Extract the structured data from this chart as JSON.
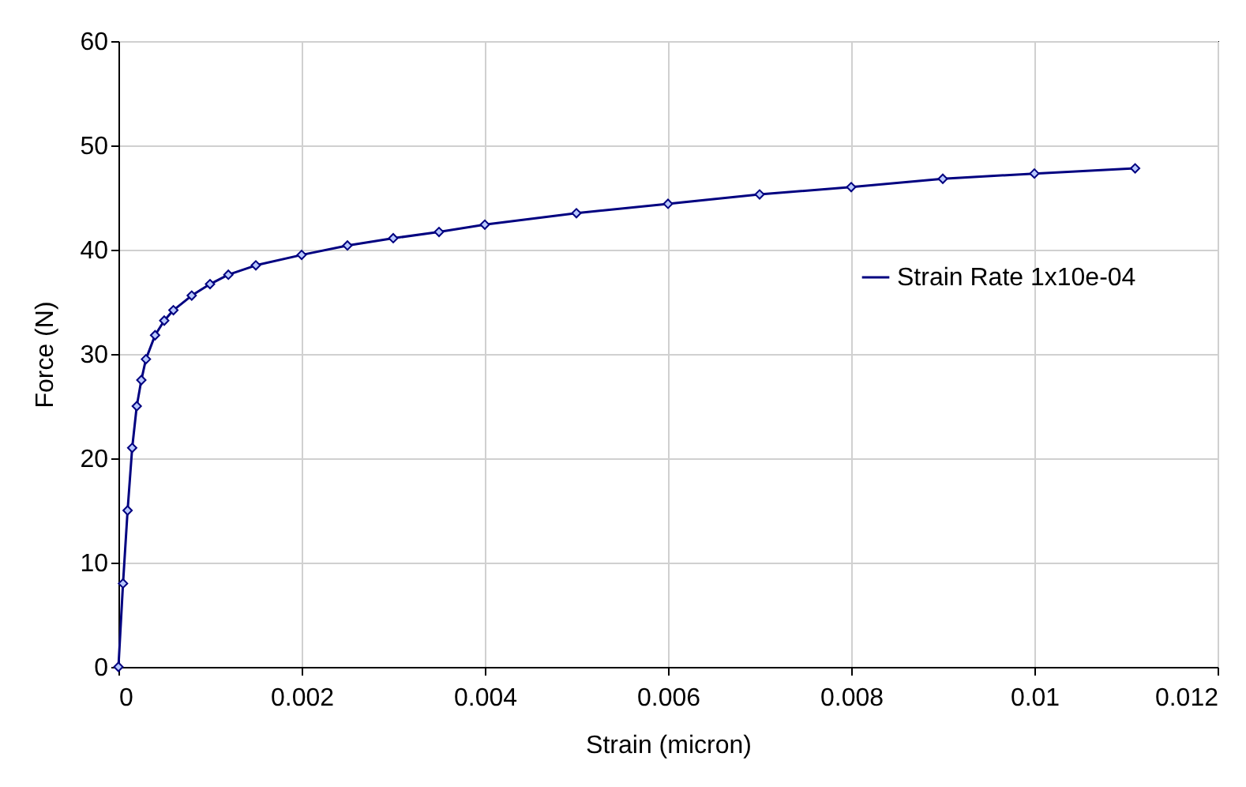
{
  "chart_data": {
    "type": "line",
    "xlabel": "Strain (micron)",
    "ylabel": "Force (N)",
    "x": [
      0,
      5e-05,
      0.0001,
      0.00015,
      0.0002,
      0.00025,
      0.0003,
      0.0004,
      0.0005,
      0.0006,
      0.0008,
      0.001,
      0.0012,
      0.0015,
      0.002,
      0.0025,
      0.003,
      0.0035,
      0.004,
      0.005,
      0.006,
      0.007,
      0.008,
      0.009,
      0.01,
      0.0111
    ],
    "series": [
      {
        "name": "Strain Rate 1x10e-04",
        "color": "#000080",
        "values": [
          0,
          8,
          15,
          21,
          25,
          27.5,
          29.5,
          31.8,
          33.2,
          34.2,
          35.6,
          36.7,
          37.6,
          38.5,
          39.5,
          40.4,
          41.1,
          41.7,
          42.4,
          43.5,
          44.4,
          45.3,
          46.0,
          46.8,
          47.3,
          47.8
        ]
      }
    ],
    "xlim": [
      0,
      0.012
    ],
    "xticks": [
      0,
      0.002,
      0.004,
      0.006,
      0.008,
      0.01,
      0.012
    ],
    "ylim": [
      0,
      60
    ],
    "yticks": [
      0,
      10,
      20,
      30,
      40,
      50,
      60
    ],
    "grid": true,
    "legend": "right",
    "marker": "diamond",
    "line_style": "solid"
  }
}
